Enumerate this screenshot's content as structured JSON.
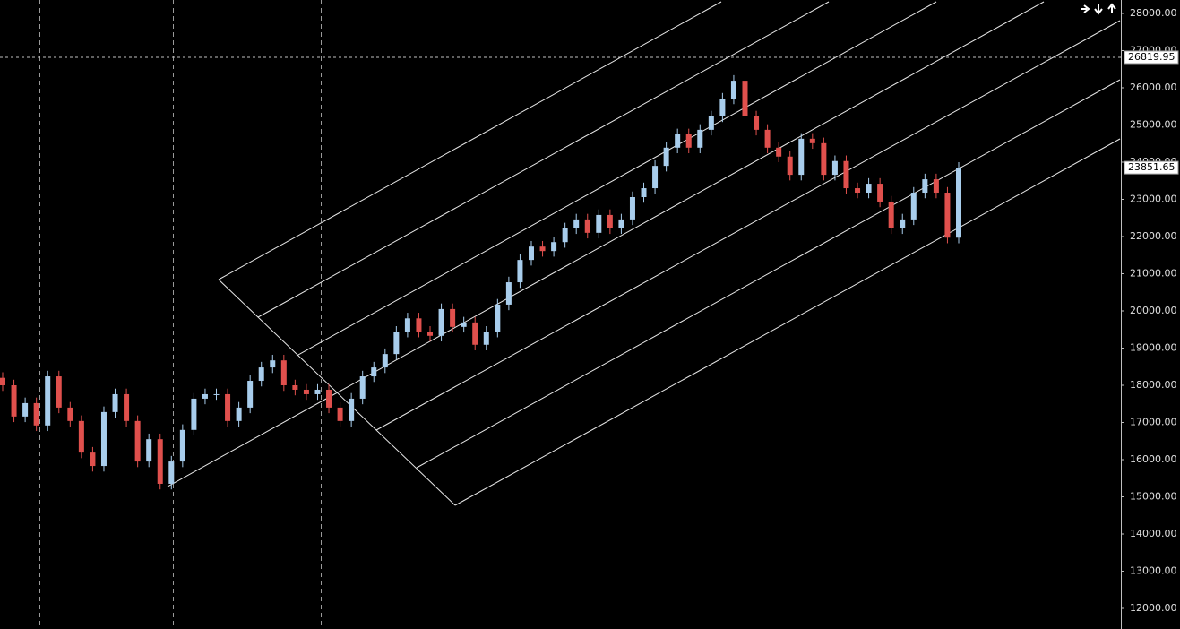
{
  "chart_data": {
    "type": "candlestick",
    "open": [
      18200,
      18000,
      17160,
      17520,
      16920,
      18240,
      17400,
      17040,
      16190,
      15830,
      17280,
      17760,
      17040,
      15950,
      16550,
      15350,
      15950,
      16800,
      17640,
      17760,
      17760,
      17040,
      17400,
      18120,
      18480,
      18670,
      18000,
      17880,
      17760,
      17880,
      17400,
      17040,
      17640,
      18240,
      18480,
      18840,
      19440,
      19800,
      19440,
      19330,
      20050,
      19570,
      19690,
      19090,
      19440,
      20170,
      20770,
      21370,
      21730,
      21610,
      21850,
      22220,
      22460,
      22100,
      22580,
      22220,
      22460,
      23060,
      23300,
      23900,
      24390,
      24750,
      24390,
      24870,
      25230,
      25710,
      26190,
      25230,
      24870,
      24390,
      24150,
      23660,
      24630,
      24510,
      23660,
      24030,
      23300,
      23180,
      23420,
      22940,
      22220,
      22460,
      23180,
      23540,
      23180,
      21970
    ],
    "high": [
      18350,
      18150,
      17670,
      17670,
      18390,
      18390,
      17550,
      17190,
      16340,
      17430,
      17910,
      17910,
      17190,
      16700,
      16700,
      16100,
      16950,
      17790,
      17910,
      17910,
      17910,
      17550,
      18270,
      18630,
      18820,
      18820,
      18150,
      18030,
      18030,
      18030,
      17550,
      17790,
      18390,
      18630,
      18990,
      19590,
      19950,
      19950,
      19590,
      20200,
      20200,
      19840,
      19840,
      19590,
      20320,
      20920,
      21520,
      21880,
      21880,
      22000,
      22370,
      22610,
      22610,
      22730,
      22730,
      22610,
      23210,
      23450,
      24050,
      24540,
      24900,
      24900,
      25020,
      25380,
      25860,
      26340,
      26340,
      25380,
      25020,
      24540,
      24300,
      24780,
      24780,
      24660,
      24180,
      24180,
      23450,
      23570,
      23570,
      23090,
      22610,
      23330,
      23690,
      23690,
      23330,
      24000
    ],
    "low": [
      17850,
      17010,
      17010,
      16770,
      16770,
      17250,
      16890,
      16040,
      15680,
      15680,
      17130,
      16890,
      15800,
      15800,
      15200,
      15200,
      15800,
      16650,
      17490,
      17610,
      16890,
      16890,
      17250,
      17970,
      18330,
      17850,
      17730,
      17610,
      17610,
      17250,
      16890,
      16890,
      17490,
      18090,
      18330,
      18690,
      19290,
      19290,
      19180,
      19180,
      19420,
      19420,
      18940,
      18940,
      19290,
      20020,
      20620,
      21220,
      21460,
      21460,
      21700,
      22070,
      21950,
      21950,
      22070,
      22070,
      22310,
      22910,
      23150,
      23750,
      24240,
      24240,
      24240,
      24720,
      25080,
      25560,
      25080,
      24720,
      24240,
      24000,
      23510,
      23510,
      24360,
      23510,
      23510,
      23150,
      23030,
      23030,
      22790,
      22070,
      22070,
      22310,
      23030,
      23030,
      21820,
      21820
    ],
    "close": [
      18000,
      17160,
      17520,
      16920,
      18240,
      17400,
      17040,
      16190,
      15830,
      17280,
      17760,
      17040,
      15950,
      16550,
      15350,
      15950,
      16800,
      17640,
      17760,
      17760,
      17040,
      17400,
      18120,
      18480,
      18670,
      18000,
      17880,
      17760,
      17880,
      17400,
      17040,
      17640,
      18240,
      18480,
      18840,
      19440,
      19800,
      19440,
      19330,
      20050,
      19570,
      19690,
      19090,
      19440,
      20170,
      20770,
      21370,
      21730,
      21610,
      21850,
      22220,
      22460,
      22100,
      22580,
      22220,
      22460,
      23060,
      23300,
      23900,
      24390,
      24750,
      24390,
      24870,
      25230,
      25710,
      26190,
      25230,
      24870,
      24390,
      24150,
      23660,
      24630,
      24510,
      23660,
      24030,
      23300,
      23180,
      23420,
      22940,
      22220,
      22460,
      23180,
      23540,
      23180,
      21970,
      23850
    ],
    "up_color": "#a8cdec",
    "down_color": "#e0504d",
    "ylim": [
      11446,
      28361
    ],
    "yticks": [
      {
        "value": 12000,
        "label": "12000.00"
      },
      {
        "value": 13000,
        "label": "13000.00"
      },
      {
        "value": 14000,
        "label": "14000.00"
      },
      {
        "value": 15000,
        "label": "15000.00"
      },
      {
        "value": 16000,
        "label": "16000.00"
      },
      {
        "value": 17000,
        "label": "17000.00"
      },
      {
        "value": 18000,
        "label": "18000.00"
      },
      {
        "value": 19000,
        "label": "19000.00"
      },
      {
        "value": 20000,
        "label": "20000.00"
      },
      {
        "value": 21000,
        "label": "21000.00"
      },
      {
        "value": 22000,
        "label": "22000.00"
      },
      {
        "value": 23000,
        "label": "23000.00"
      },
      {
        "value": 24000,
        "label": "24000.00"
      },
      {
        "value": 25000,
        "label": "25000.00"
      },
      {
        "value": 26000,
        "label": "26000.00"
      },
      {
        "value": 27000,
        "label": "27000.00"
      },
      {
        "value": 28000,
        "label": "28000.00"
      }
    ],
    "crosshair_price": {
      "value": 26819.95,
      "label": "26819.95"
    },
    "last_price": {
      "value": 23851.65,
      "label": "23851.65"
    }
  }
}
